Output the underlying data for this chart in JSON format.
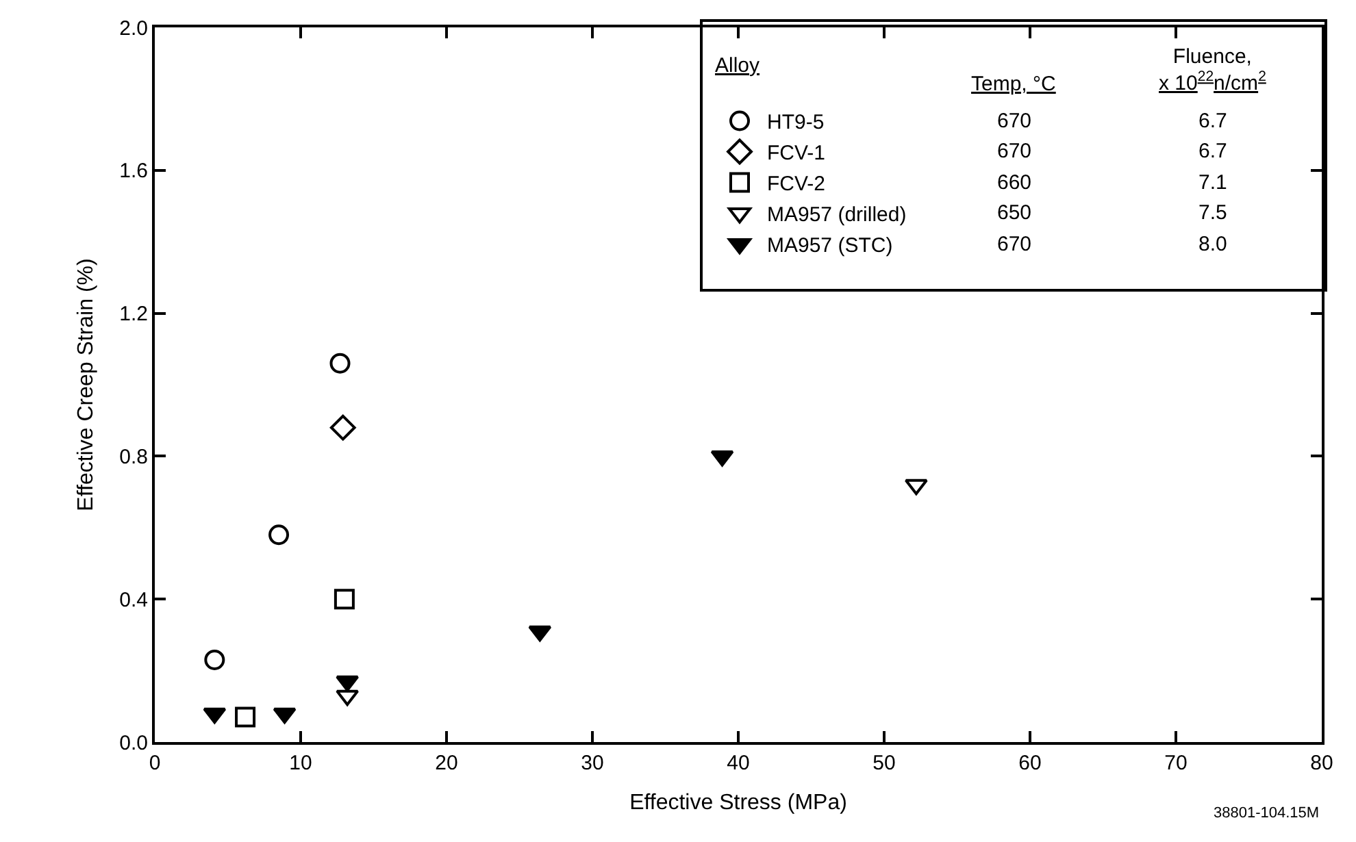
{
  "chart_data": {
    "type": "scatter",
    "xlabel": "Effective Stress (MPa)",
    "ylabel": "Effective Creep Strain (%)",
    "legend_title": "Alloy",
    "legend": "top right",
    "grid": false,
    "xlim": [
      0,
      80
    ],
    "xticks": [
      0,
      10,
      20,
      30,
      40,
      50,
      60,
      70,
      80
    ],
    "ylim": [
      0,
      2.0
    ],
    "yticks": [
      {
        "value": 0,
        "label": "0.0"
      },
      0.4,
      0.8,
      1.2,
      1.6,
      {
        "value": 2.0,
        "label": "2.0"
      }
    ],
    "series": [
      {
        "name": "HT9-5",
        "color": "#000000",
        "marker": "circle-open",
        "x": [
          4.1,
          8.5,
          12.7
        ],
        "values": [
          0.23,
          0.58,
          1.06
        ]
      },
      {
        "name": "FCV-1",
        "color": "#000000",
        "marker": "diamond-open",
        "x": [
          12.9
        ],
        "values": [
          0.88
        ]
      },
      {
        "name": "FCV-2",
        "color": "#000000",
        "marker": "square-open",
        "x": [
          6.2,
          13.0
        ],
        "values": [
          0.07,
          0.4
        ]
      },
      {
        "name": "MA957 (drilled)",
        "color": "#000000",
        "marker": "triangle-down-open",
        "x": [
          13.2,
          52.2
        ],
        "values": [
          0.13,
          0.72
        ]
      },
      {
        "name": "MA957 (STC)",
        "color": "#000000",
        "marker": "triangle-down",
        "x": [
          4.1,
          8.9,
          13.2,
          26.4,
          38.9
        ],
        "values": [
          0.08,
          0.08,
          0.17,
          0.31,
          0.8
        ]
      }
    ],
    "annotations": [
      "Temp, °C",
      "Fluence,\nx 10$^{22}$n/cm$^{2}$",
      "670",
      "6.7",
      "670",
      "6.7",
      "660",
      "7.1",
      "650",
      "7.5",
      "670",
      "8.0",
      "38801-104.15M"
    ]
  }
}
